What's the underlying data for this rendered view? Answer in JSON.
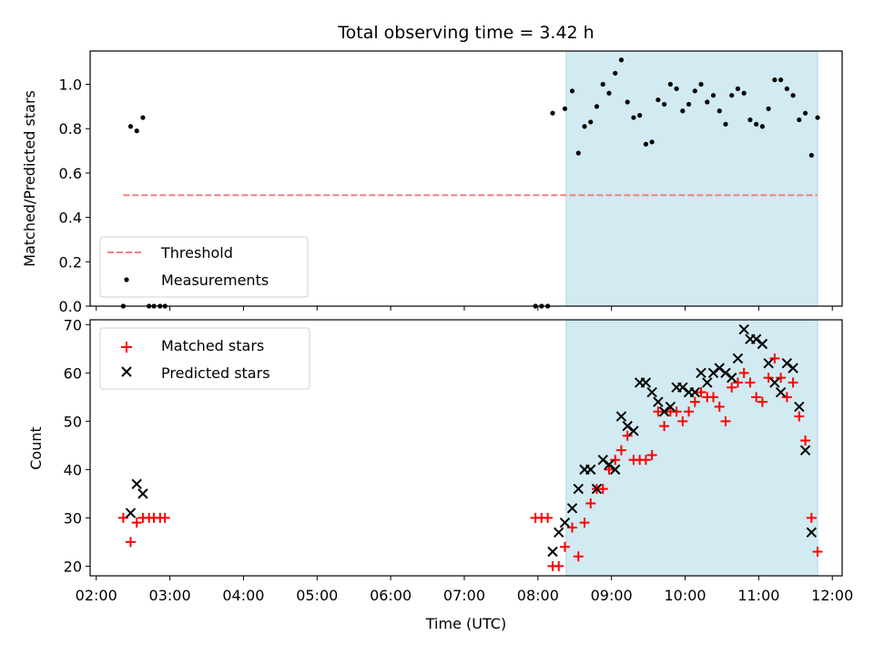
{
  "figure": {
    "title": "Total observing time = 3.42 h",
    "xlabel": "Time (UTC)"
  },
  "chart_data": [
    {
      "type": "scatter",
      "ylabel": "Matched/Predicted stars",
      "xlim": [
        "02:00",
        "12:00"
      ],
      "ylim": [
        0,
        1.15
      ],
      "x_ticks": [
        "02:00",
        "03:00",
        "04:00",
        "05:00",
        "06:00",
        "07:00",
        "08:00",
        "09:00",
        "10:00",
        "11:00",
        "12:00"
      ],
      "y_ticks": [
        "0.0",
        "0.2",
        "0.4",
        "0.6",
        "0.8",
        "1.0"
      ],
      "y_tick_values": [
        0,
        0.2,
        0.4,
        0.6,
        0.8,
        1.0
      ],
      "shaded_span": {
        "start": "08:23",
        "end": "11:48",
        "color": "#d2eaf1"
      },
      "legend_position": "lower-left",
      "threshold": {
        "name": "Threshold",
        "y": 0.5,
        "x_start": "02:22",
        "x_end": "11:48",
        "color": "#f08080",
        "style": "dashed"
      },
      "series": [
        {
          "name": "Measurements",
          "color": "#000000",
          "marker": "dot",
          "points": [
            [
              "02:22",
              0.0
            ],
            [
              "02:28",
              0.81
            ],
            [
              "02:33",
              0.79
            ],
            [
              "02:38",
              0.85
            ],
            [
              "02:43",
              0.0
            ],
            [
              "02:47",
              0.0
            ],
            [
              "02:52",
              0.0
            ],
            [
              "02:56",
              0.0
            ],
            [
              "07:58",
              0.0
            ],
            [
              "08:03",
              0.0
            ],
            [
              "08:08",
              0.0
            ],
            [
              "08:12",
              0.87
            ],
            [
              "08:22",
              0.89
            ],
            [
              "08:28",
              0.97
            ],
            [
              "08:33",
              0.69
            ],
            [
              "08:38",
              0.81
            ],
            [
              "08:43",
              0.83
            ],
            [
              "08:48",
              0.9
            ],
            [
              "08:53",
              1.0
            ],
            [
              "08:58",
              0.96
            ],
            [
              "09:03",
              1.05
            ],
            [
              "09:08",
              1.11
            ],
            [
              "09:13",
              0.92
            ],
            [
              "09:18",
              0.85
            ],
            [
              "09:23",
              0.86
            ],
            [
              "09:28",
              0.73
            ],
            [
              "09:33",
              0.74
            ],
            [
              "09:38",
              0.93
            ],
            [
              "09:43",
              0.91
            ],
            [
              "09:48",
              1.0
            ],
            [
              "09:53",
              0.98
            ],
            [
              "09:58",
              0.88
            ],
            [
              "10:03",
              0.91
            ],
            [
              "10:08",
              0.97
            ],
            [
              "10:13",
              1.0
            ],
            [
              "10:18",
              0.92
            ],
            [
              "10:23",
              0.95
            ],
            [
              "10:28",
              0.88
            ],
            [
              "10:33",
              0.82
            ],
            [
              "10:38",
              0.95
            ],
            [
              "10:43",
              0.98
            ],
            [
              "10:48",
              0.96
            ],
            [
              "10:53",
              0.84
            ],
            [
              "10:58",
              0.82
            ],
            [
              "11:03",
              0.81
            ],
            [
              "11:08",
              0.89
            ],
            [
              "11:13",
              1.02
            ],
            [
              "11:18",
              1.02
            ],
            [
              "11:23",
              0.98
            ],
            [
              "11:28",
              0.95
            ],
            [
              "11:33",
              0.84
            ],
            [
              "11:38",
              0.87
            ],
            [
              "11:43",
              0.68
            ],
            [
              "11:48",
              0.85
            ]
          ]
        }
      ]
    },
    {
      "type": "scatter",
      "ylabel": "Count",
      "xlim": [
        "02:00",
        "12:00"
      ],
      "ylim": [
        18,
        71
      ],
      "x_ticks": [
        "02:00",
        "03:00",
        "04:00",
        "05:00",
        "06:00",
        "07:00",
        "08:00",
        "09:00",
        "10:00",
        "11:00",
        "12:00"
      ],
      "y_ticks": [
        "20",
        "30",
        "40",
        "50",
        "60",
        "70"
      ],
      "y_tick_values": [
        20,
        30,
        40,
        50,
        60,
        70
      ],
      "shaded_span": {
        "start": "08:23",
        "end": "11:48",
        "color": "#d2eaf1"
      },
      "legend_position": "top-left",
      "series": [
        {
          "name": "Matched stars",
          "color": "#ff0000",
          "marker": "plus",
          "points": [
            [
              "02:22",
              30
            ],
            [
              "02:28",
              25
            ],
            [
              "02:33",
              29
            ],
            [
              "02:38",
              30
            ],
            [
              "02:43",
              30
            ],
            [
              "02:47",
              30
            ],
            [
              "02:52",
              30
            ],
            [
              "02:56",
              30
            ],
            [
              "07:58",
              30
            ],
            [
              "08:03",
              30
            ],
            [
              "08:08",
              30
            ],
            [
              "08:12",
              20
            ],
            [
              "08:17",
              20
            ],
            [
              "08:22",
              24
            ],
            [
              "08:28",
              28
            ],
            [
              "08:33",
              22
            ],
            [
              "08:38",
              29
            ],
            [
              "08:43",
              33
            ],
            [
              "08:48",
              36
            ],
            [
              "08:53",
              36
            ],
            [
              "08:58",
              40
            ],
            [
              "09:03",
              42
            ],
            [
              "09:08",
              44
            ],
            [
              "09:13",
              47
            ],
            [
              "09:18",
              42
            ],
            [
              "09:23",
              42
            ],
            [
              "09:28",
              42
            ],
            [
              "09:33",
              43
            ],
            [
              "09:38",
              52
            ],
            [
              "09:43",
              49
            ],
            [
              "09:48",
              52
            ],
            [
              "09:53",
              52
            ],
            [
              "09:58",
              50
            ],
            [
              "10:03",
              52
            ],
            [
              "10:08",
              54
            ],
            [
              "10:13",
              56
            ],
            [
              "10:18",
              55
            ],
            [
              "10:23",
              55
            ],
            [
              "10:28",
              53
            ],
            [
              "10:33",
              50
            ],
            [
              "10:38",
              57
            ],
            [
              "10:43",
              58
            ],
            [
              "10:48",
              60
            ],
            [
              "10:53",
              58
            ],
            [
              "10:58",
              55
            ],
            [
              "11:03",
              54
            ],
            [
              "11:08",
              59
            ],
            [
              "11:13",
              63
            ],
            [
              "11:18",
              59
            ],
            [
              "11:23",
              55
            ],
            [
              "11:28",
              58
            ],
            [
              "11:33",
              51
            ],
            [
              "11:38",
              46
            ],
            [
              "11:43",
              30
            ],
            [
              "11:48",
              23
            ]
          ]
        },
        {
          "name": "Predicted stars",
          "color": "#000000",
          "marker": "x",
          "points": [
            [
              "02:28",
              31
            ],
            [
              "02:33",
              37
            ],
            [
              "02:38",
              35
            ],
            [
              "08:12",
              23
            ],
            [
              "08:17",
              27
            ],
            [
              "08:22",
              29
            ],
            [
              "08:28",
              32
            ],
            [
              "08:33",
              36
            ],
            [
              "08:38",
              40
            ],
            [
              "08:43",
              40
            ],
            [
              "08:48",
              36
            ],
            [
              "08:53",
              42
            ],
            [
              "08:58",
              41
            ],
            [
              "09:03",
              40
            ],
            [
              "09:08",
              51
            ],
            [
              "09:13",
              49
            ],
            [
              "09:18",
              48
            ],
            [
              "09:23",
              58
            ],
            [
              "09:28",
              58
            ],
            [
              "09:33",
              56
            ],
            [
              "09:38",
              54
            ],
            [
              "09:43",
              52
            ],
            [
              "09:48",
              53
            ],
            [
              "09:53",
              57
            ],
            [
              "09:58",
              57
            ],
            [
              "10:03",
              56
            ],
            [
              "10:08",
              56
            ],
            [
              "10:13",
              60
            ],
            [
              "10:18",
              58
            ],
            [
              "10:23",
              60
            ],
            [
              "10:28",
              61
            ],
            [
              "10:33",
              60
            ],
            [
              "10:38",
              59
            ],
            [
              "10:43",
              63
            ],
            [
              "10:48",
              69
            ],
            [
              "10:53",
              67
            ],
            [
              "10:58",
              67
            ],
            [
              "11:03",
              66
            ],
            [
              "11:08",
              62
            ],
            [
              "11:13",
              58
            ],
            [
              "11:18",
              56
            ],
            [
              "11:23",
              62
            ],
            [
              "11:28",
              61
            ],
            [
              "11:33",
              53
            ],
            [
              "11:38",
              44
            ],
            [
              "11:43",
              27
            ]
          ]
        }
      ]
    }
  ]
}
